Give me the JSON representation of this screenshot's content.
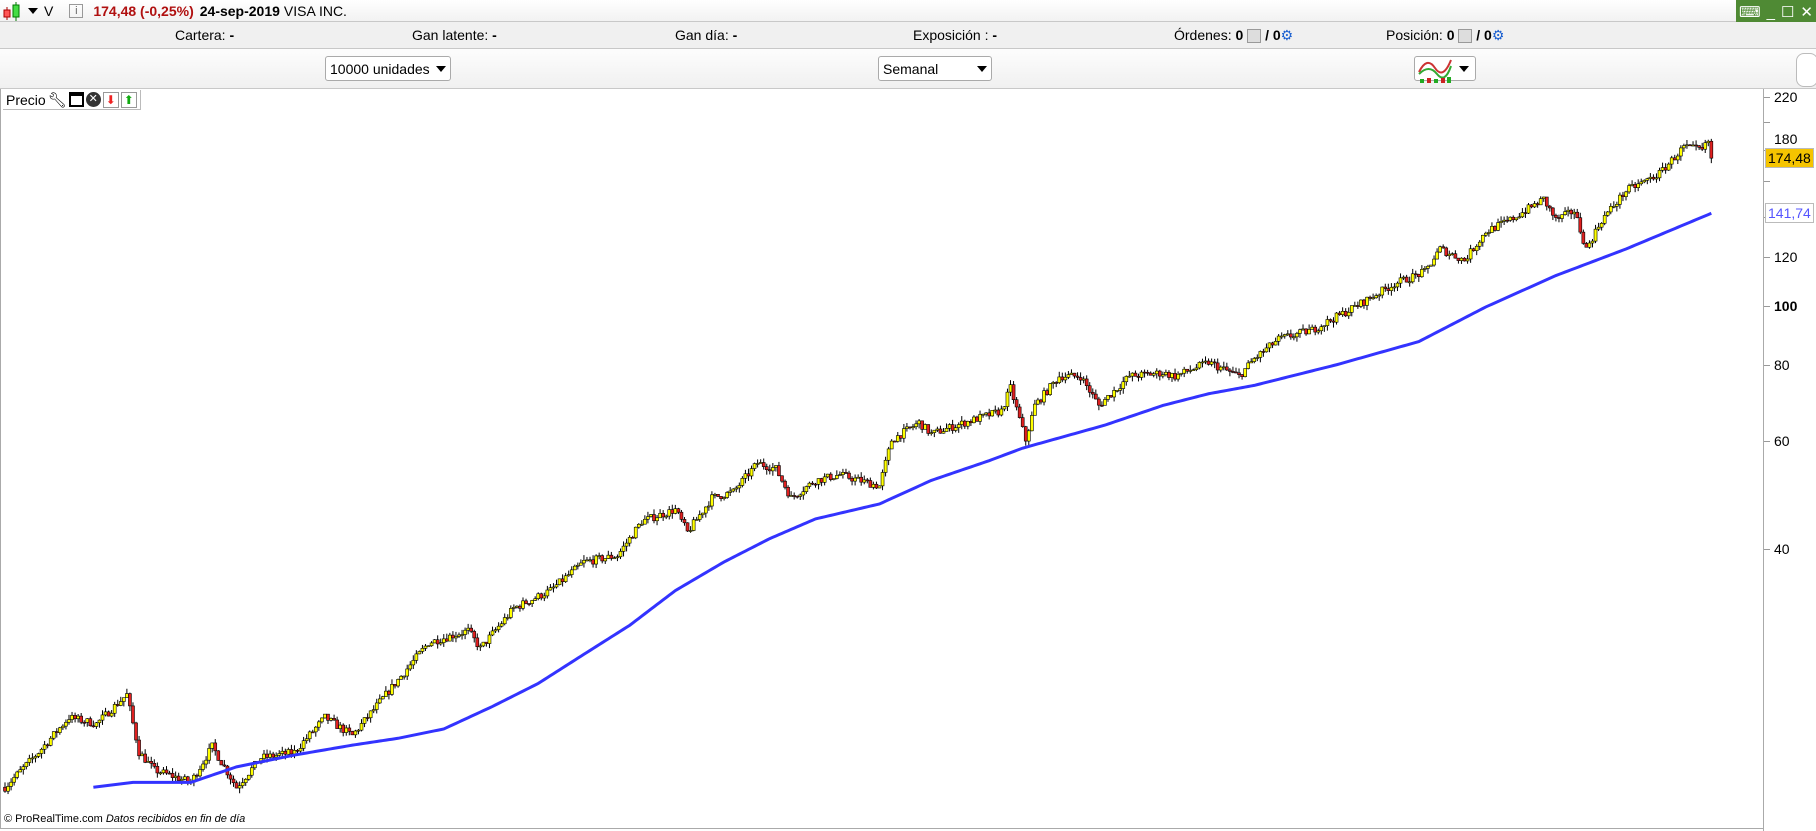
{
  "header": {
    "symbol": "V",
    "price_change": "174,48 (-0,25%)",
    "date": "24-sep-2019",
    "name": "VISA INC.",
    "price_color": "#b01010"
  },
  "status": {
    "cartera_label": "Cartera:",
    "cartera": "-",
    "gan_latente_label": "Gan latente:",
    "gan_latente": "-",
    "gan_dia_label": "Gan día:",
    "gan_dia": "-",
    "exposicion_label": "Exposición :",
    "exposicion": "-",
    "ordenes_label": "Órdenes:",
    "ordenes_a": "0",
    "ordenes_b": "/ 0",
    "posicion_label": "Posición:",
    "posicion_a": "0",
    "posicion_b": "/ 0"
  },
  "toolbar": {
    "quantity": "10000 unidades",
    "period": "Semanal"
  },
  "panel": {
    "label": "Precio",
    "icons": [
      "wrench-icon",
      "window-icon",
      "close-icon",
      "move-down-icon",
      "move-up-icon"
    ]
  },
  "footer": {
    "copyright": "© ProRealTime.com",
    "note": "Datos recibidos en fin de día"
  },
  "chart_data": {
    "type": "candlestick",
    "scale": "log",
    "ylim": [
      15,
      230
    ],
    "y_ticks": [
      220,
      180,
      120,
      100,
      80,
      60,
      40
    ],
    "y_ticks_bold": [
      100
    ],
    "colors": {
      "up": "#ffff00",
      "down": "#e02020",
      "outline": "#000000",
      "ma": "#3333ff",
      "last_price_bg": "#f5c400"
    },
    "last_price": "174,48",
    "ma_last": "141,74",
    "price_path": {
      "week": [
        0,
        11,
        21,
        30,
        40,
        44,
        49,
        61,
        68,
        76,
        84,
        95,
        105,
        114,
        125,
        139,
        152,
        156,
        167,
        179,
        190,
        201,
        209,
        220,
        224,
        232,
        239,
        247,
        253,
        258,
        266,
        274,
        287,
        291,
        300,
        304,
        315,
        327,
        330,
        335,
        338,
        346,
        353,
        359,
        369,
        380,
        384,
        395,
        405,
        410,
        418,
        429,
        441,
        456,
        466,
        471,
        479,
        486,
        494,
        505,
        509,
        515,
        519,
        524,
        532,
        543,
        551,
        557,
        559,
        560
      ],
      "close": [
        16.3,
        18.6,
        21.2,
        20.7,
        23.1,
        18.6,
        17.4,
        16.6,
        19.0,
        16.3,
        18.2,
        18.6,
        21.2,
        19.8,
        23.1,
        28.1,
        29.4,
        27.5,
        32.0,
        34.2,
        38.1,
        39.0,
        44.4,
        46.4,
        42.6,
        48.5,
        49.6,
        55.3,
        54.1,
        48.5,
        51.8,
        52.9,
        50.7,
        60.3,
        64.4,
        61.7,
        64.4,
        67.3,
        73.4,
        60.3,
        68.7,
        76.7,
        76.7,
        68.7,
        76.7,
        77.7,
        76.7,
        80.8,
        76.7,
        81.9,
        88.2,
        91.3,
        98.3,
        108.7,
        113.6,
        123.9,
        118.7,
        132.3,
        138.2,
        149.5,
        138.2,
        143.1,
        123.9,
        138.2,
        154.2,
        164.6,
        181.9,
        179.6,
        185.9,
        174.48
      ]
    },
    "moving_average": {
      "week": [
        29,
        42,
        61,
        76,
        95,
        114,
        129,
        144,
        160,
        175,
        190,
        205,
        220,
        236,
        251,
        266,
        287,
        304,
        323,
        334,
        361,
        380,
        395,
        410,
        437,
        464,
        486,
        509,
        532,
        560
      ],
      "value": [
        16.3,
        16.6,
        16.6,
        17.6,
        18.4,
        19.1,
        19.6,
        20.3,
        22.1,
        24.1,
        26.9,
        30.0,
        34.2,
        38.1,
        41.6,
        44.8,
        47.4,
        51.8,
        55.8,
        58.5,
        63.8,
        68.7,
        71.8,
        74.1,
        80.1,
        87.4,
        99.6,
        112.1,
        123.9,
        141.74
      ]
    }
  }
}
